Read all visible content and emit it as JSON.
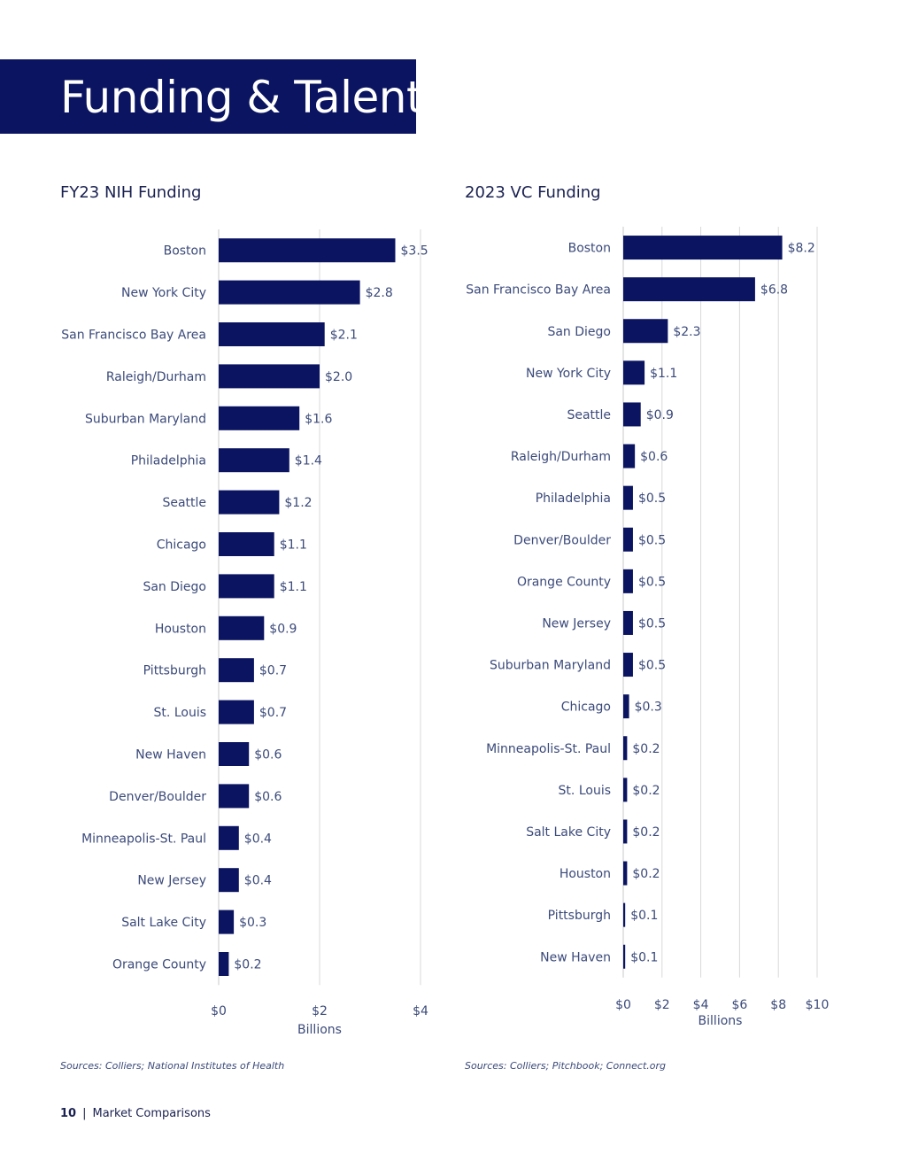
{
  "page": {
    "title": "Funding & Talent",
    "page_number": "10",
    "separator": "|",
    "section": "Market Comparisons",
    "bar_color": "#0b1461",
    "banner_color": "#0b1461"
  },
  "chart_data": [
    {
      "type": "bar",
      "orientation": "horizontal",
      "title": "FY23 NIH Funding",
      "xlabel": "Billions",
      "ylabel": "",
      "xlim": [
        0,
        4
      ],
      "ticks": [
        0,
        2,
        4
      ],
      "tick_labels": [
        "$0",
        "$2",
        "$4"
      ],
      "grid": true,
      "source": "Sources: Colliers; National Institutes of Health",
      "categories": [
        "Boston",
        "New York City",
        "San Francisco Bay Area",
        "Raleigh/Durham",
        "Suburban Maryland",
        "Philadelphia",
        "Seattle",
        "Chicago",
        "San Diego",
        "Houston",
        "Pittsburgh",
        "St. Louis",
        "New Haven",
        "Denver/Boulder",
        "Minneapolis-St. Paul",
        "New Jersey",
        "Salt Lake City",
        "Orange County"
      ],
      "values": [
        3.5,
        2.8,
        2.1,
        2.0,
        1.6,
        1.4,
        1.2,
        1.1,
        1.1,
        0.9,
        0.7,
        0.7,
        0.6,
        0.6,
        0.4,
        0.4,
        0.3,
        0.2
      ],
      "data_labels": [
        "$3.5",
        "$2.8",
        "$2.1",
        "$2.0",
        "$1.6",
        "$1.4",
        "$1.2",
        "$1.1",
        "$1.1",
        "$0.9",
        "$0.7",
        "$0.7",
        "$0.6",
        "$0.6",
        "$0.4",
        "$0.4",
        "$0.3",
        "$0.2"
      ]
    },
    {
      "type": "bar",
      "orientation": "horizontal",
      "title": "2023 VC Funding",
      "xlabel": "Billions",
      "ylabel": "",
      "xlim": [
        0,
        10
      ],
      "ticks": [
        0,
        2,
        4,
        6,
        8,
        10
      ],
      "tick_labels": [
        "$0",
        "$2",
        "$4",
        "$6",
        "$8",
        "$10"
      ],
      "grid": true,
      "source": "Sources: Colliers; Pitchbook; Connect.org",
      "categories": [
        "Boston",
        "San Francisco Bay Area",
        "San Diego",
        "New York City",
        "Seattle",
        "Raleigh/Durham",
        "Philadelphia",
        "Denver/Boulder",
        "Orange County",
        "New Jersey",
        "Suburban Maryland",
        "Chicago",
        "Minneapolis-St. Paul",
        "St. Louis",
        "Salt Lake City",
        "Houston",
        "Pittsburgh",
        "New Haven"
      ],
      "values": [
        8.2,
        6.8,
        2.3,
        1.1,
        0.9,
        0.6,
        0.5,
        0.5,
        0.5,
        0.5,
        0.5,
        0.3,
        0.2,
        0.2,
        0.2,
        0.2,
        0.1,
        0.1
      ],
      "data_labels": [
        "$8.2",
        "$6.8",
        "$2.3",
        "$1.1",
        "$0.9",
        "$0.6",
        "$0.5",
        "$0.5",
        "$0.5",
        "$0.5",
        "$0.5",
        "$0.3",
        "$0.2",
        "$0.2",
        "$0.2",
        "$0.2",
        "$0.1",
        "$0.1"
      ]
    }
  ]
}
